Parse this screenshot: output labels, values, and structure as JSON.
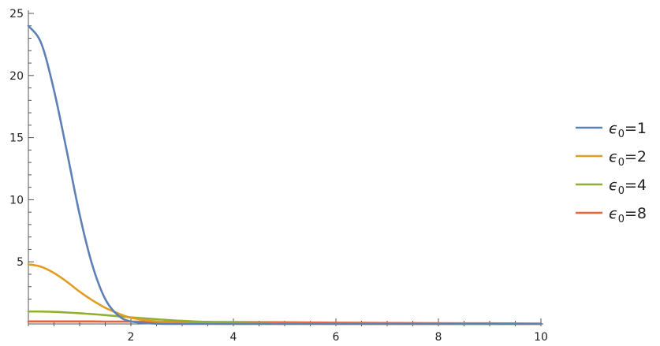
{
  "chart_data": {
    "type": "line",
    "title": "",
    "xlabel": "",
    "ylabel": "",
    "xlim": [
      0,
      10
    ],
    "ylim": [
      0,
      25
    ],
    "x_ticks": [
      {
        "value": 2,
        "label": "2"
      },
      {
        "value": 4,
        "label": "4"
      },
      {
        "value": 6,
        "label": "6"
      },
      {
        "value": 8,
        "label": "8"
      },
      {
        "value": 10,
        "label": "10"
      }
    ],
    "y_ticks": [
      {
        "value": 5,
        "label": "5"
      },
      {
        "value": 10,
        "label": "10"
      },
      {
        "value": 15,
        "label": "15"
      },
      {
        "value": 20,
        "label": "20"
      },
      {
        "value": 25,
        "label": "25"
      }
    ],
    "grid": false,
    "legend_position": "right",
    "x": [
      0,
      0.25,
      0.5,
      0.75,
      1.0,
      1.25,
      1.5,
      1.75,
      2.0,
      2.5,
      3.0,
      3.5,
      4.0,
      5.0,
      6.0,
      7.0,
      8.0,
      9.0,
      10.0
    ],
    "series": [
      {
        "name": "ϵ0=1",
        "legend_base": "ϵ",
        "legend_sub": "0",
        "legend_rest": "=1",
        "color": "#5e81b5",
        "values": [
          24.0,
          22.6,
          18.8,
          13.9,
          8.8,
          4.7,
          2.0,
          0.7,
          0.2,
          0.02,
          0.0,
          0.0,
          0.0,
          0.0,
          0.0,
          0.0,
          0.0,
          0.0,
          0.0
        ]
      },
      {
        "name": "ϵ0=2",
        "legend_base": "ϵ",
        "legend_sub": "0",
        "legend_rest": "=2",
        "color": "#e19c24",
        "values": [
          4.8,
          4.6,
          4.1,
          3.4,
          2.6,
          1.9,
          1.3,
          0.85,
          0.5,
          0.2,
          0.07,
          0.02,
          0.0,
          0.0,
          0.0,
          0.0,
          0.0,
          0.0,
          0.0
        ]
      },
      {
        "name": "ϵ0=4",
        "legend_base": "ϵ",
        "legend_sub": "0",
        "legend_rest": "=4",
        "color": "#8fb032",
        "values": [
          1.0,
          1.0,
          0.97,
          0.92,
          0.86,
          0.79,
          0.71,
          0.62,
          0.53,
          0.38,
          0.25,
          0.16,
          0.1,
          0.04,
          0.01,
          0.0,
          0.0,
          0.0,
          0.0
        ]
      },
      {
        "name": "ϵ0=8",
        "legend_base": "ϵ",
        "legend_sub": "0",
        "legend_rest": "=8",
        "color": "#eb6235",
        "values": [
          0.2,
          0.2,
          0.2,
          0.2,
          0.2,
          0.2,
          0.19,
          0.19,
          0.19,
          0.18,
          0.17,
          0.16,
          0.15,
          0.13,
          0.1,
          0.08,
          0.06,
          0.05,
          0.03
        ]
      }
    ]
  }
}
